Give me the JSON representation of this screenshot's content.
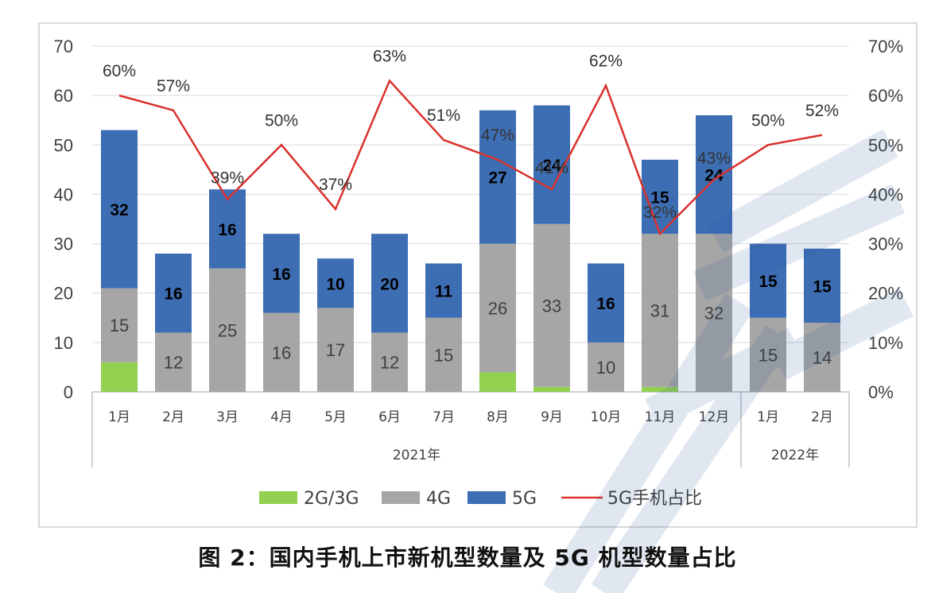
{
  "caption": "图 2：国内手机上市新机型数量及 5G 机型数量占比",
  "colors": {
    "g23": "#92d050",
    "g4": "#a6a6a6",
    "g5": "#3d6eb4",
    "line": "#d9312b",
    "axis": "#bfbfbf",
    "text": "#404040"
  },
  "chart_data": {
    "type": "bar",
    "categories": [
      "1月",
      "2月",
      "3月",
      "4月",
      "5月",
      "6月",
      "7月",
      "8月",
      "9月",
      "10月",
      "11月",
      "12月",
      "1月",
      "2月"
    ],
    "groups": [
      {
        "label": "2021年",
        "count": 12
      },
      {
        "label": "2022年",
        "count": 2
      }
    ],
    "series": [
      {
        "name": "2G/3G",
        "values": [
          6,
          0,
          0,
          0,
          0,
          0,
          0,
          4,
          1,
          0,
          1,
          0,
          0,
          0
        ]
      },
      {
        "name": "4G",
        "values": [
          15,
          12,
          25,
          16,
          17,
          12,
          15,
          26,
          33,
          10,
          31,
          32,
          15,
          14
        ]
      },
      {
        "name": "5G",
        "values": [
          32,
          16,
          16,
          16,
          10,
          20,
          11,
          27,
          24,
          16,
          15,
          24,
          15,
          15
        ]
      }
    ],
    "line_series": {
      "name": "5G手机占比",
      "values": [
        60,
        57,
        39,
        50,
        37,
        63,
        51,
        47,
        41,
        62,
        32,
        43,
        50,
        52
      ]
    },
    "bar_labels_4g": [
      "15",
      "12",
      "25",
      "16",
      "17",
      "12",
      "15",
      "26",
      "33",
      "10",
      "31",
      "32",
      "15",
      "14"
    ],
    "bar_labels_5g": [
      "32",
      "16",
      "16",
      "16",
      "10",
      "20",
      "11",
      "27",
      "24",
      "16",
      "15",
      "24",
      "15",
      "15"
    ],
    "line_labels": [
      "60%",
      "57%",
      "39%",
      "50%",
      "37%",
      "63%",
      "51%",
      "47%",
      "41%",
      "62%",
      "32%",
      "43%",
      "50%",
      "52%"
    ],
    "ylim": [
      0,
      70
    ],
    "y2lim": [
      0,
      70
    ],
    "yticks": [
      "0",
      "10",
      "20",
      "30",
      "40",
      "50",
      "60",
      "70"
    ],
    "y2ticks": [
      "0%",
      "10%",
      "20%",
      "30%",
      "40%",
      "50%",
      "60%",
      "70%"
    ],
    "legend": [
      "2G/3G",
      "4G",
      "5G",
      "5G手机占比"
    ],
    "legend_position": "bottom",
    "grid": true
  }
}
